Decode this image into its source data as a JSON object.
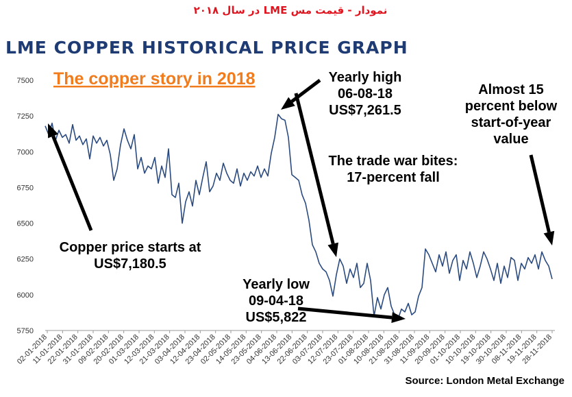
{
  "header": {
    "caption": "نمودار - قیمت مس LME در سال ۲۰۱۸",
    "title": "LME COPPER HISTORICAL PRICE GRAPH"
  },
  "chart_data": {
    "type": "line",
    "title": "LME COPPER HISTORICAL PRICE GRAPH",
    "subtitle": "The copper story in 2018",
    "xlabel": "",
    "ylabel": "",
    "ylim": [
      5750,
      7500
    ],
    "yticks": [
      5750,
      6000,
      6250,
      6500,
      6750,
      7000,
      7250,
      7500
    ],
    "xtick_labels": [
      "02-01-2018",
      "11-01-2018",
      "22-01-2018",
      "31-01-2018",
      "09-02-2018",
      "20-02-2018",
      "01-03-2018",
      "12-03-2018",
      "21-03-2018",
      "03-04-2018",
      "12-04-2018",
      "23-04-2018",
      "02-05-2018",
      "14-05-2018",
      "23-05-2018",
      "04-06-2018",
      "13-06-2018",
      "22-06-2018",
      "03-07-2018",
      "12-07-2018",
      "23-07-2018",
      "01-08-2018",
      "10-08-2018",
      "21-08-2018",
      "31-08-2018",
      "11-09-2018",
      "20-09-2018",
      "01-10-2018",
      "10-10-2018",
      "19-10-2018",
      "30-10-2018",
      "08-11-2018",
      "19-11-2018",
      "28-11-2018"
    ],
    "grid": false,
    "series": [
      {
        "name": "",
        "color": "#2a4a7f",
        "values": [
          7180,
          7120,
          7200,
          7080,
          7150,
          7100,
          7120,
          7060,
          7190,
          7080,
          7110,
          7050,
          7090,
          6950,
          7110,
          7060,
          7100,
          7040,
          7080,
          6980,
          6800,
          6880,
          7050,
          7160,
          7080,
          7020,
          7120,
          6880,
          6960,
          6850,
          6900,
          6880,
          6960,
          6780,
          6900,
          6820,
          7020,
          6700,
          6680,
          6780,
          6500,
          6650,
          6720,
          6620,
          6800,
          6700,
          6820,
          6930,
          6720,
          6760,
          6850,
          6800,
          6920,
          6850,
          6800,
          6780,
          6880,
          6760,
          6850,
          6800,
          6860,
          6830,
          6900,
          6820,
          6880,
          6830,
          6990,
          7100,
          7261,
          7230,
          7220,
          7100,
          6840,
          6820,
          6800,
          6700,
          6640,
          6520,
          6350,
          6300,
          6220,
          6180,
          6160,
          6100,
          5990,
          6140,
          6250,
          6200,
          6080,
          6180,
          6120,
          6220,
          6050,
          6080,
          6220,
          6100,
          5850,
          5980,
          5900,
          6000,
          6050,
          5920,
          5860,
          5830,
          5900,
          5880,
          5940,
          5860,
          5880,
          5990,
          6050,
          6320,
          6280,
          6220,
          6160,
          6280,
          6200,
          6300,
          6150,
          6240,
          6280,
          6100,
          6240,
          6180,
          6300,
          6220,
          6120,
          6200,
          6300,
          6250,
          6180,
          6100,
          6220,
          6080,
          6200,
          6120,
          6260,
          6240,
          6100,
          6220,
          6180,
          6260,
          6220,
          6280,
          6180,
          6300,
          6240,
          6200,
          6110
        ]
      }
    ],
    "annotations": [
      {
        "id": "start",
        "lines": [
          "Copper price starts at",
          "US$7,180.5"
        ]
      },
      {
        "id": "high",
        "lines": [
          "Yearly high",
          "06-08-18",
          "US$7,261.5"
        ]
      },
      {
        "id": "tradewar",
        "lines": [
          "The trade war bites:",
          "17-percent fall"
        ]
      },
      {
        "id": "low",
        "lines": [
          "Yearly low",
          "09-04-18",
          "US$5,822"
        ]
      },
      {
        "id": "end",
        "lines": [
          "Almost 15",
          "percent below",
          "start-of-year",
          "value"
        ]
      }
    ],
    "source": "Source: London Metal Exchange"
  }
}
